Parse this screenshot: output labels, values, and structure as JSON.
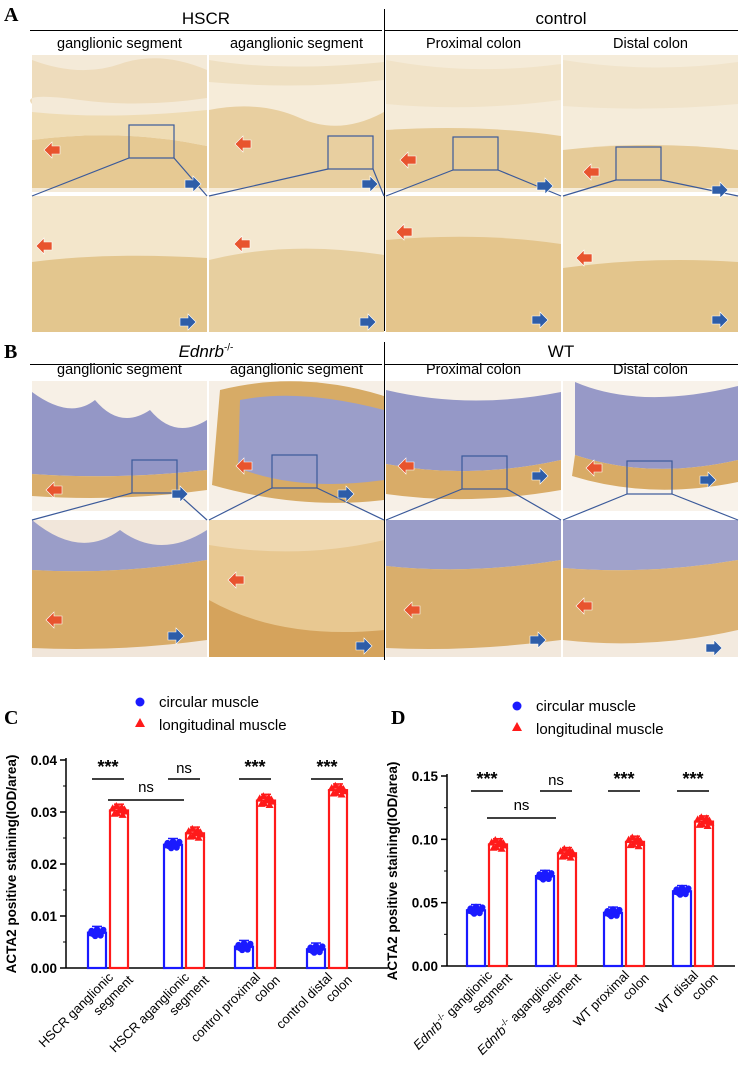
{
  "panels": {
    "A": {
      "letter": "A",
      "groups": [
        "HSCR",
        "control"
      ],
      "segments": [
        "ganglionic segment",
        "aganglionic segment",
        "Proximal colon",
        "Distal colon"
      ]
    },
    "B": {
      "letter": "B",
      "group1_italic": "Ednrb",
      "group1_sup": "-/-",
      "group2": "WT",
      "segments": [
        "ganglionic segment",
        "aganglionic segment",
        "Proximal colon",
        "Distal colon"
      ]
    }
  },
  "legend": {
    "circular": "circular muscle",
    "longitudinal": "longitudinal muscle"
  },
  "colors": {
    "circular": "#1a1aff",
    "longitudinal": "#ff1a1a",
    "frame_blue": "#3b5a9a",
    "tissue_A": "#e9d3a4",
    "tissue_B_bg": "#f6eee4",
    "mucosa_B": "#8f92c4"
  },
  "chart_data": [
    {
      "panel": "C",
      "type": "bar",
      "ylabel": "ACTA2 positive staining(IOD/area)",
      "ylim": [
        0,
        0.04
      ],
      "yticks": [
        "0.00",
        "0.01",
        "0.02",
        "0.03",
        "0.04"
      ],
      "categories": [
        [
          "HSCR ganglionic",
          "segment"
        ],
        [
          "HSCR aganglionic",
          "segment"
        ],
        [
          "control proximal",
          "colon"
        ],
        [
          "control distal",
          "colon"
        ]
      ],
      "series": [
        {
          "name": "circular muscle",
          "marker": "circle",
          "values": [
            0.0068,
            0.0237,
            0.0041,
            0.0036
          ]
        },
        {
          "name": "longitudinal muscle",
          "marker": "triangle",
          "values": [
            0.0303,
            0.0259,
            0.0322,
            0.0342
          ]
        }
      ],
      "annotations": [
        "***",
        "ns",
        "***",
        "***",
        "ns"
      ]
    },
    {
      "panel": "D",
      "type": "bar",
      "ylabel": "ACTA2 positive staining(IOD/area)",
      "ylim": [
        0,
        0.15
      ],
      "yticks": [
        "0.00",
        "0.05",
        "0.10",
        "0.15"
      ],
      "categories": [
        [
          "Ednrb-/- ganglionic",
          "segment"
        ],
        [
          "Ednrb-/- aganglionic",
          "segment"
        ],
        [
          "WT proximal",
          "colon"
        ],
        [
          "WT distal",
          "colon"
        ]
      ],
      "series": [
        {
          "name": "circular muscle",
          "marker": "circle",
          "values": [
            0.044,
            0.071,
            0.042,
            0.059
          ]
        },
        {
          "name": "longitudinal muscle",
          "marker": "triangle",
          "values": [
            0.096,
            0.089,
            0.098,
            0.114
          ]
        }
      ],
      "annotations": [
        "***",
        "ns",
        "***",
        "***",
        "ns"
      ]
    }
  ]
}
